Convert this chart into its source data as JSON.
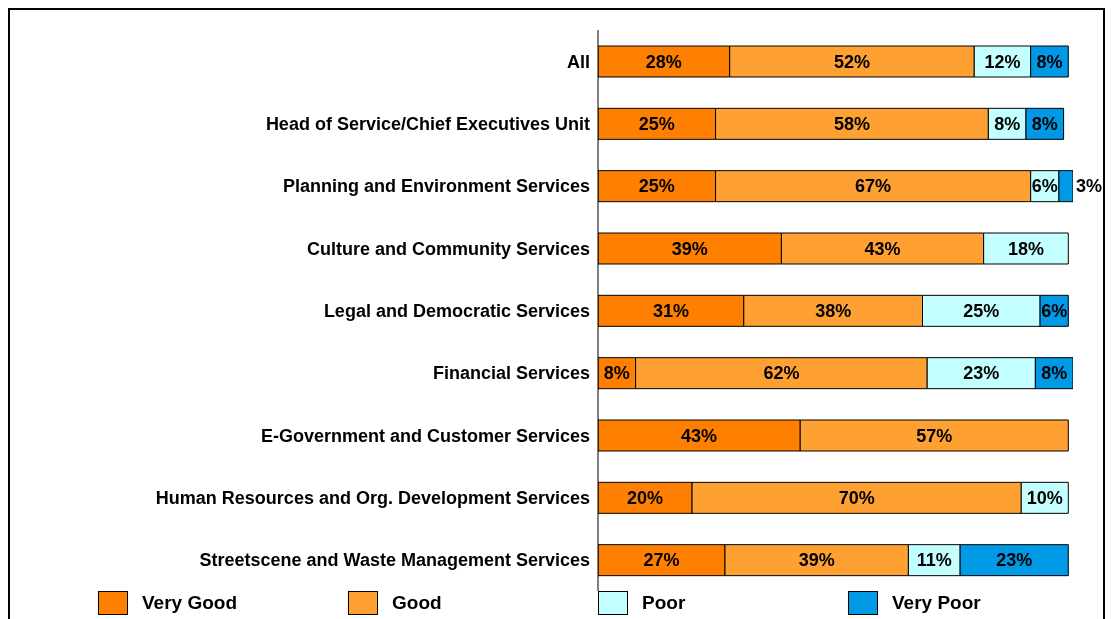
{
  "chart_data": {
    "type": "bar",
    "orientation": "horizontal",
    "stacked": true,
    "categories": [
      "All",
      "Head of Service/Chief Executives Unit",
      "Planning and Environment Services",
      "Culture and Community Services",
      "Legal and Democratic Services",
      "Financial Services",
      "E-Government and Customer Services",
      "Human Resources and Org. Development Services",
      "Streetscene and Waste Management Services"
    ],
    "xlim": [
      0,
      101
    ],
    "tick_labels": "y",
    "grid": false,
    "legend": "bottom",
    "series": [
      {
        "name": "Very Good",
        "color": "#ff8000",
        "values": [
          28,
          25,
          25,
          39,
          31,
          8,
          43,
          20,
          27
        ],
        "value_labels": [
          "28%",
          "25%",
          "25%",
          "39%",
          "31%",
          "8%",
          "43%",
          "20%",
          "27%"
        ]
      },
      {
        "name": "Good",
        "color": "#ffa033",
        "values": [
          52,
          58,
          67,
          43,
          38,
          62,
          57,
          70,
          39
        ],
        "value_labels": [
          "52%",
          "58%",
          "67%",
          "43%",
          "38%",
          "62%",
          "57%",
          "70%",
          "39%"
        ]
      },
      {
        "name": "Poor",
        "color": "#c4ffff",
        "values": [
          12,
          8,
          6,
          18,
          25,
          23,
          null,
          10,
          11
        ],
        "value_labels": [
          "12%",
          "8%",
          "6%",
          "18%",
          "25%",
          "23%",
          null,
          "10%",
          "11%"
        ]
      },
      {
        "name": "Very Poor",
        "color": "#0099e6",
        "values": [
          8,
          8,
          3,
          null,
          6,
          8,
          null,
          null,
          23
        ],
        "value_labels": [
          "8%",
          "8%",
          "3%",
          null,
          "6%",
          "8%",
          null,
          null,
          "23%"
        ]
      }
    ]
  }
}
